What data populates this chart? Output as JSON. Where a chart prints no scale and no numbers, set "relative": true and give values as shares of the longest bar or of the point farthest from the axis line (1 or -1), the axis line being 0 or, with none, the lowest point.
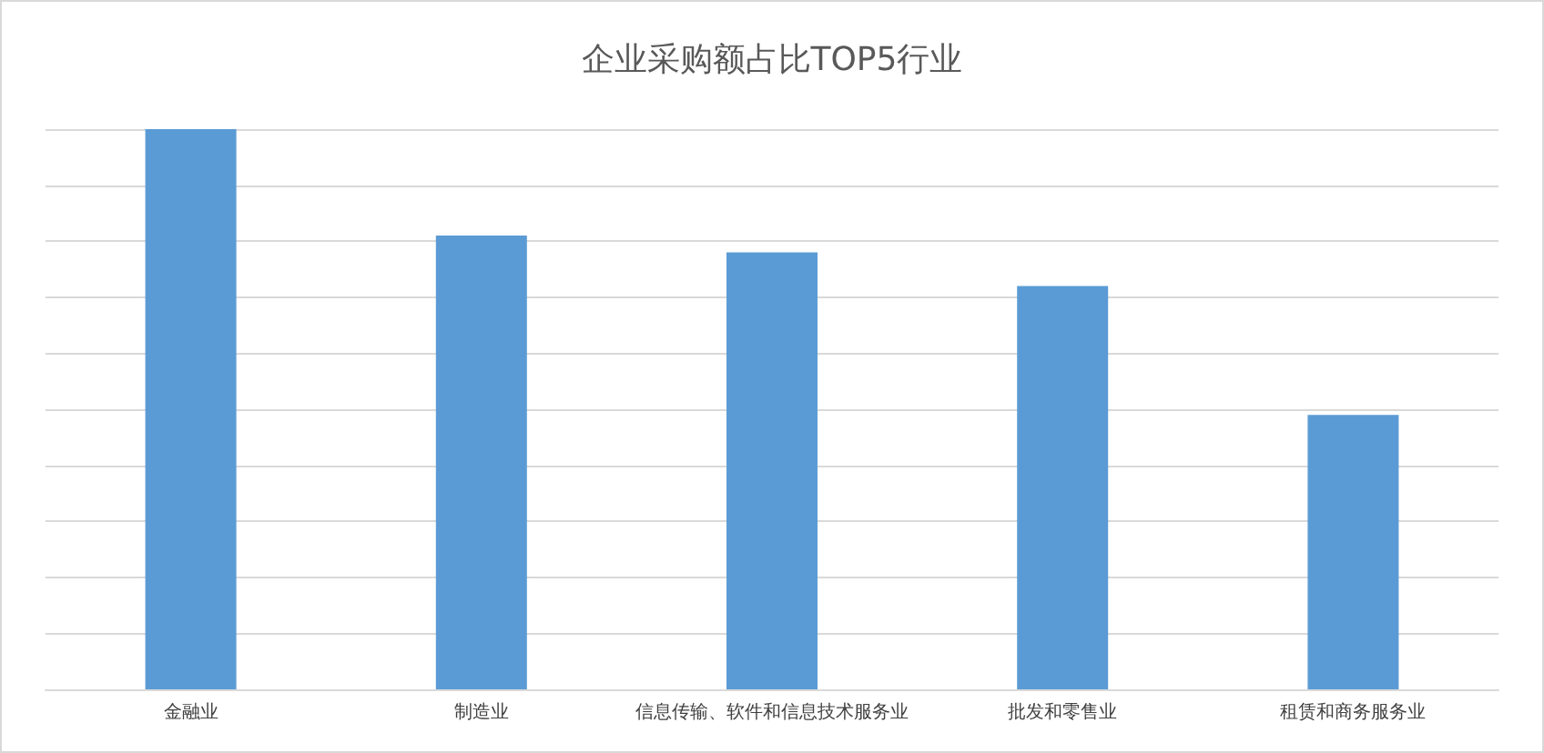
{
  "chart_data": {
    "type": "bar",
    "title": "企业采购额占比TOP5行业",
    "categories": [
      "金融业",
      "制造业",
      "信息传输、软件和信息技术服务业",
      "批发和零售业",
      "租赁和商务服务业"
    ],
    "values": [
      1,
      0.81,
      0.78,
      0.72,
      0.49
    ],
    "color": "#5b9bd5",
    "relative": true,
    "grid": "y"
  }
}
